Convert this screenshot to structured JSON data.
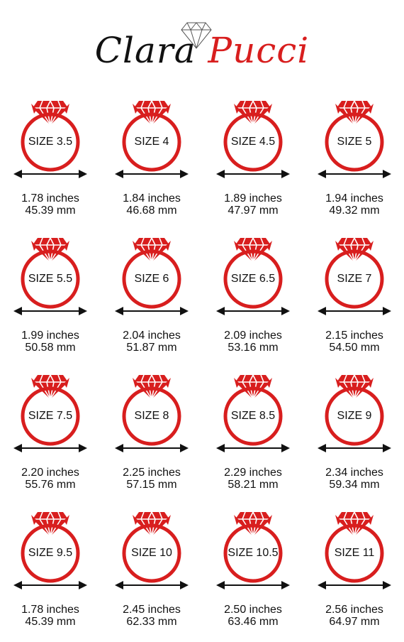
{
  "brand": {
    "first": "Clara",
    "last": "Pucci",
    "icon": "diamond-outline-icon",
    "colors": {
      "primary": "#d81e1e",
      "text": "#111111"
    }
  },
  "sizes": [
    {
      "label": "SIZE 3.5",
      "inches": "1.78 inches",
      "mm": "45.39 mm"
    },
    {
      "label": "SIZE 4",
      "inches": "1.84 inches",
      "mm": "46.68 mm"
    },
    {
      "label": "SIZE 4.5",
      "inches": "1.89 inches",
      "mm": "47.97 mm"
    },
    {
      "label": "SIZE 5",
      "inches": "1.94 inches",
      "mm": "49.32 mm"
    },
    {
      "label": "SIZE 5.5",
      "inches": "1.99 inches",
      "mm": "50.58 mm"
    },
    {
      "label": "SIZE 6",
      "inches": "2.04 inches",
      "mm": "51.87 mm"
    },
    {
      "label": "SIZE 6.5",
      "inches": "2.09 inches",
      "mm": "53.16 mm"
    },
    {
      "label": "SIZE 7",
      "inches": "2.15 inches",
      "mm": "54.50 mm"
    },
    {
      "label": "SIZE 7.5",
      "inches": "2.20 inches",
      "mm": "55.76 mm"
    },
    {
      "label": "SIZE 8",
      "inches": "2.25 inches",
      "mm": "57.15 mm"
    },
    {
      "label": "SIZE 8.5",
      "inches": "2.29 inches",
      "mm": "58.21 mm"
    },
    {
      "label": "SIZE 9",
      "inches": "2.34 inches",
      "mm": "59.34 mm"
    },
    {
      "label": "SIZE 9.5",
      "inches": "1.78 inches",
      "mm": "45.39 mm"
    },
    {
      "label": "SIZE 10",
      "inches": "2.45 inches",
      "mm": "62.33 mm"
    },
    {
      "label": "SIZE 10.5",
      "inches": "2.50 inches",
      "mm": "63.46 mm"
    },
    {
      "label": "SIZE 11",
      "inches": "2.56 inches",
      "mm": "64.97 mm"
    }
  ]
}
